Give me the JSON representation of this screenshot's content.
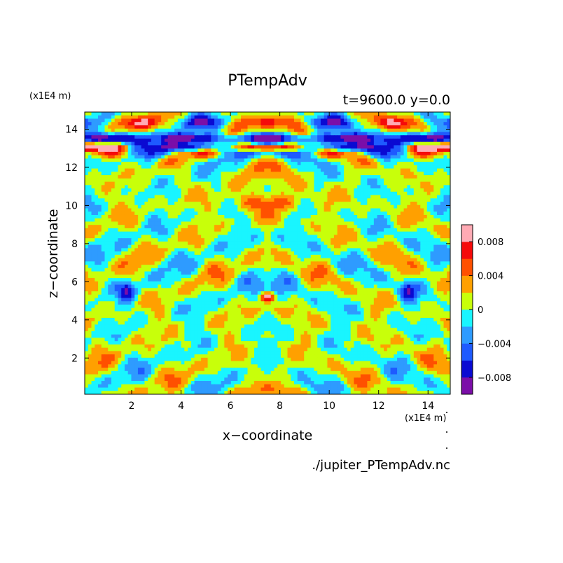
{
  "chart_data": {
    "type": "heatmap",
    "title": "PTempAdv",
    "subtitle": "t=9600.0 y=0.0",
    "xlabel": "x−coordinate",
    "ylabel": "z−coordinate",
    "x_unit": "(x1E4 m)",
    "y_unit": "(x1E4 m)",
    "source": "./jupiter_PTempAdv.nc",
    "xlim": [
      0.1,
      14.9
    ],
    "ylim": [
      0.1,
      14.9
    ],
    "x_ticks": [
      2,
      4,
      6,
      8,
      10,
      12,
      14
    ],
    "y_ticks": [
      2,
      4,
      6,
      8,
      10,
      12,
      14
    ],
    "x_tick_labels": [
      "2",
      "4",
      "6",
      "8",
      "10",
      "12",
      "14"
    ],
    "y_tick_labels": [
      "2",
      "4",
      "6",
      "8",
      "10",
      "12",
      "14"
    ],
    "colorbar": {
      "levels": [
        -0.01,
        -0.008,
        -0.006,
        -0.004,
        -0.002,
        0,
        0.002,
        0.004,
        0.006,
        0.008,
        0.01
      ],
      "colors": [
        "#7b0ea8",
        "#0a0ad2",
        "#1e5aff",
        "#2e9bff",
        "#19f5ff",
        "#c8ff0a",
        "#ffa000",
        "#ff5000",
        "#f50a0a",
        "#ffaab4"
      ],
      "tick_values": [
        0.008,
        0.004,
        0,
        -0.004,
        -0.008
      ],
      "tick_labels": [
        "0.008",
        "0.004",
        "0",
        "−0.004",
        "−0.008"
      ]
    },
    "field_description": "Mirror-symmetric about x≈7.5; strong alternating positive/negative band near z≈13–14.5, mostly near-zero (cyan/yellow) mottled field below with scattered small extremes."
  }
}
